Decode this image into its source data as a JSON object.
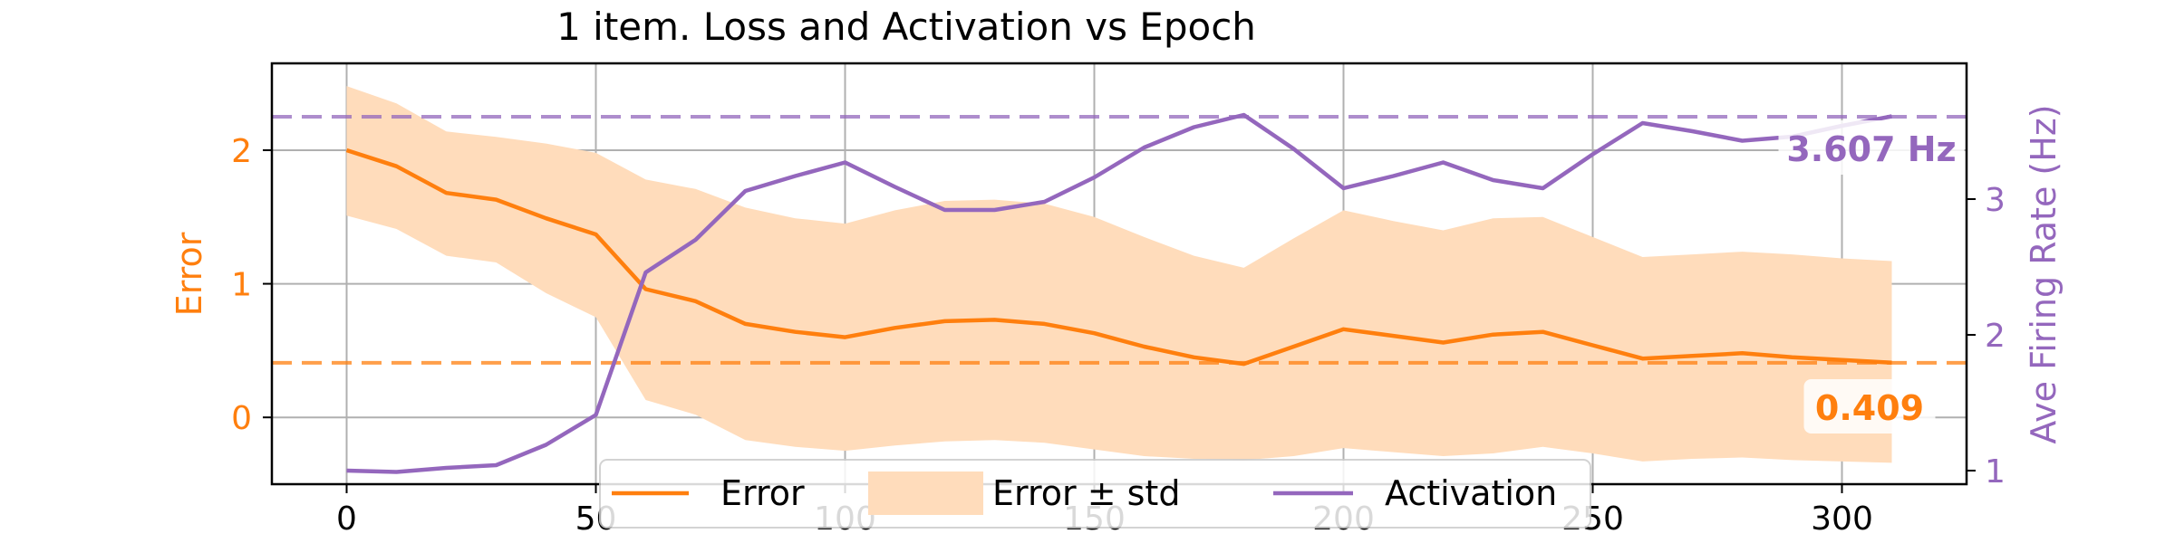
{
  "chart_data": {
    "type": "line",
    "title": "1 item. Loss and Activation vs Epoch",
    "xlabel": "",
    "ylabel": "Error",
    "y2label": "Ave Firing Rate (Hz)",
    "xlim": [
      -15,
      325
    ],
    "ylim": [
      -0.5,
      2.65
    ],
    "y2lim": [
      0.9,
      4.0
    ],
    "x_ticks": [
      0,
      50,
      100,
      150,
      200,
      250,
      300
    ],
    "y_ticks": [
      0,
      1,
      2
    ],
    "y2_ticks": [
      1,
      2,
      3
    ],
    "grid": true,
    "legend_position": "bottom-center",
    "x": [
      0,
      10,
      20,
      30,
      40,
      50,
      60,
      70,
      80,
      90,
      100,
      110,
      120,
      130,
      140,
      150,
      160,
      170,
      180,
      190,
      200,
      210,
      220,
      230,
      240,
      250,
      260,
      270,
      280,
      290,
      300,
      310
    ],
    "series": [
      {
        "name": "Error",
        "axis": "left",
        "color": "#ff7f0e",
        "values": [
          2.0,
          1.88,
          1.68,
          1.63,
          1.49,
          1.37,
          0.96,
          0.87,
          0.7,
          0.64,
          0.6,
          0.67,
          0.72,
          0.73,
          0.7,
          0.63,
          0.53,
          0.45,
          0.4,
          0.53,
          0.66,
          0.61,
          0.56,
          0.62,
          0.64,
          0.54,
          0.44,
          0.46,
          0.48,
          0.45,
          0.43,
          0.41
        ]
      },
      {
        "name": "Error ± std",
        "axis": "left",
        "color": "#ffdcbb",
        "upper": [
          2.48,
          2.35,
          2.14,
          2.1,
          2.05,
          1.98,
          1.78,
          1.71,
          1.57,
          1.49,
          1.45,
          1.55,
          1.62,
          1.63,
          1.6,
          1.5,
          1.35,
          1.21,
          1.12,
          1.34,
          1.55,
          1.47,
          1.4,
          1.49,
          1.5,
          1.35,
          1.2,
          1.22,
          1.24,
          1.22,
          1.19,
          1.17
        ],
        "lower": [
          1.51,
          1.41,
          1.21,
          1.16,
          0.93,
          0.75,
          0.13,
          0.02,
          -0.17,
          -0.22,
          -0.25,
          -0.21,
          -0.18,
          -0.17,
          -0.19,
          -0.24,
          -0.29,
          -0.31,
          -0.32,
          -0.29,
          -0.23,
          -0.26,
          -0.29,
          -0.27,
          -0.22,
          -0.27,
          -0.33,
          -0.31,
          -0.3,
          -0.32,
          -0.33,
          -0.34
        ]
      },
      {
        "name": "Activation",
        "axis": "right",
        "color": "#9467bd",
        "values": [
          1.0,
          0.99,
          1.02,
          1.04,
          1.19,
          1.41,
          2.46,
          2.7,
          3.06,
          3.17,
          3.27,
          3.09,
          2.92,
          2.92,
          2.98,
          3.16,
          3.38,
          3.53,
          3.62,
          3.37,
          3.08,
          3.17,
          3.27,
          3.14,
          3.08,
          3.33,
          3.56,
          3.5,
          3.43,
          3.46,
          3.54,
          3.61
        ]
      }
    ],
    "reference_lines": [
      {
        "axis": "left",
        "value": 0.409,
        "label": "0.409",
        "color": "#ff7f0e"
      },
      {
        "axis": "right",
        "value": 3.607,
        "label": "3.607 Hz",
        "color": "#9467bd"
      }
    ]
  }
}
